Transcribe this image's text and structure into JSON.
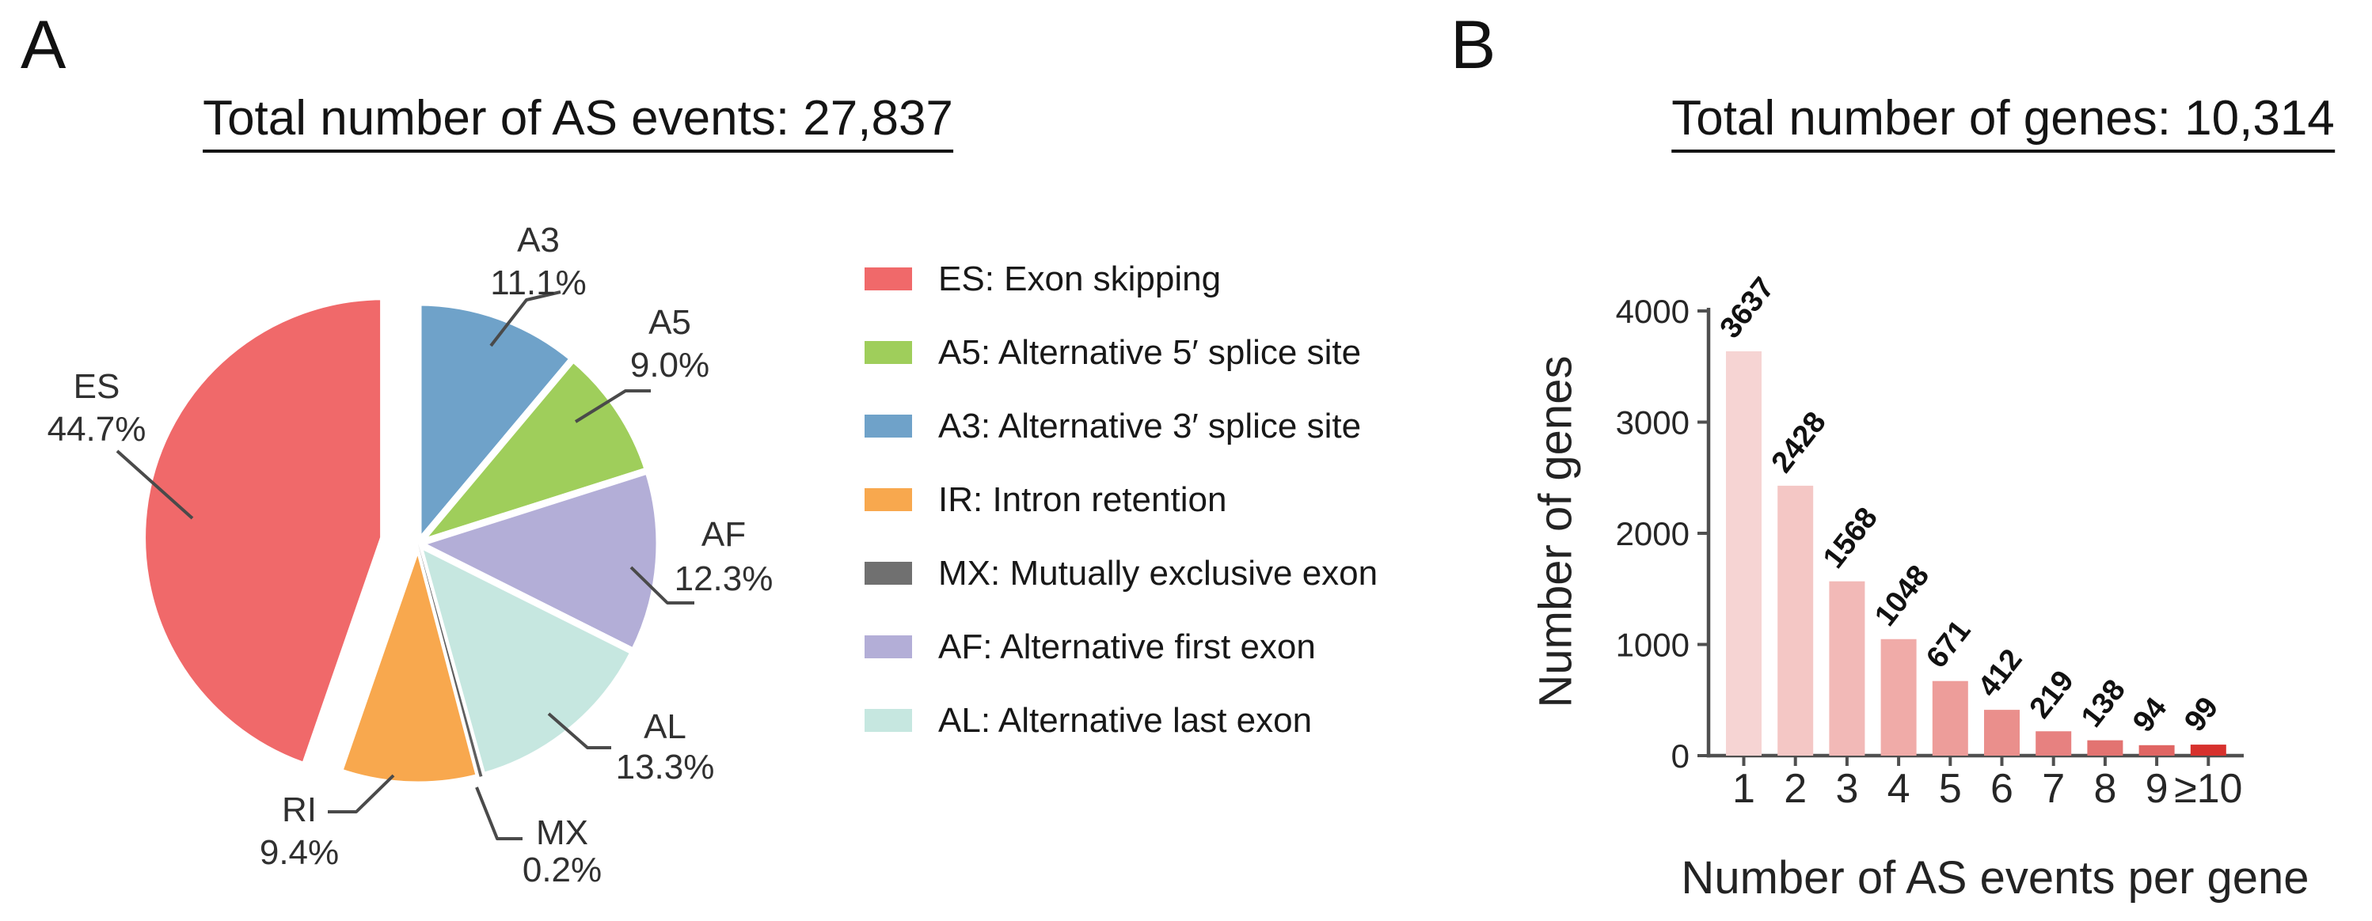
{
  "panelA": {
    "letter": "A",
    "title": "Total number of AS events: 27,837",
    "legend": {
      "items": [
        {
          "key": "ES",
          "label": "ES: Exon skipping",
          "color": "#F0696A"
        },
        {
          "key": "A5",
          "label": "A5: Alternative 5′ splice site",
          "color": "#9FCE5B"
        },
        {
          "key": "A3",
          "label": "A3: Alternative 3′ splice site",
          "color": "#6FA2C9"
        },
        {
          "key": "IR",
          "label": "IR: Intron retention",
          "color": "#F8A84E"
        },
        {
          "key": "MX",
          "label": "MX: Mutually exclusive exon",
          "color": "#707070"
        },
        {
          "key": "AF",
          "label": "AF: Alternative first exon",
          "color": "#B3AED7"
        },
        {
          "key": "AL",
          "label": "AL: Alternative last exon",
          "color": "#C6E7E0"
        }
      ]
    }
  },
  "panelB": {
    "letter": "B",
    "title": "Total number of genes: 10,314",
    "ylabel": "Number of genes",
    "xlabel": "Number of AS events per gene"
  },
  "chart_data": [
    {
      "type": "pie",
      "title": "Total number of AS events: 27,837",
      "start": "12-oclock",
      "direction": "clockwise",
      "slices": [
        {
          "key": "A3",
          "name": "A3",
          "pct": 11.1,
          "pct_label": "11.1%",
          "color": "#6FA2C9",
          "exploded": false
        },
        {
          "key": "A5",
          "name": "A5",
          "pct": 9.0,
          "pct_label": "9.0%",
          "color": "#9FCE5B",
          "exploded": false
        },
        {
          "key": "AF",
          "name": "AF",
          "pct": 12.3,
          "pct_label": "12.3%",
          "color": "#B3AED7",
          "exploded": false
        },
        {
          "key": "AL",
          "name": "AL",
          "pct": 13.3,
          "pct_label": "13.3%",
          "color": "#C6E7E0",
          "exploded": false
        },
        {
          "key": "MX",
          "name": "MX",
          "pct": 0.2,
          "pct_label": "0.2%",
          "color": "#5f5f5f",
          "exploded": false
        },
        {
          "key": "RI",
          "name": "RI",
          "pct": 9.4,
          "pct_label": "9.4%",
          "color": "#F8A84E",
          "exploded": false
        },
        {
          "key": "ES",
          "name": "ES",
          "pct": 44.7,
          "pct_label": "44.7%",
          "color": "#F0696A",
          "exploded": true
        }
      ]
    },
    {
      "type": "bar",
      "title": "Total number of genes: 10,314",
      "categories": [
        "1",
        "2",
        "3",
        "4",
        "5",
        "6",
        "7",
        "8",
        "9",
        "≥10"
      ],
      "values": [
        3637,
        2428,
        1568,
        1048,
        671,
        412,
        219,
        138,
        94,
        99
      ],
      "bar_colors": [
        "#F6D4D3",
        "#F4C7C5",
        "#F2B9B7",
        "#F0ABA8",
        "#ED9D9A",
        "#EA8F8C",
        "#E78180",
        "#E37371",
        "#E06563",
        "#D7312D"
      ],
      "xlabel": "Number of AS events per gene",
      "ylabel": "Number of genes",
      "yticks": [
        0,
        1000,
        2000,
        3000,
        4000
      ],
      "ylim": [
        0,
        4000
      ],
      "grid": false,
      "legend_position": "none"
    }
  ]
}
